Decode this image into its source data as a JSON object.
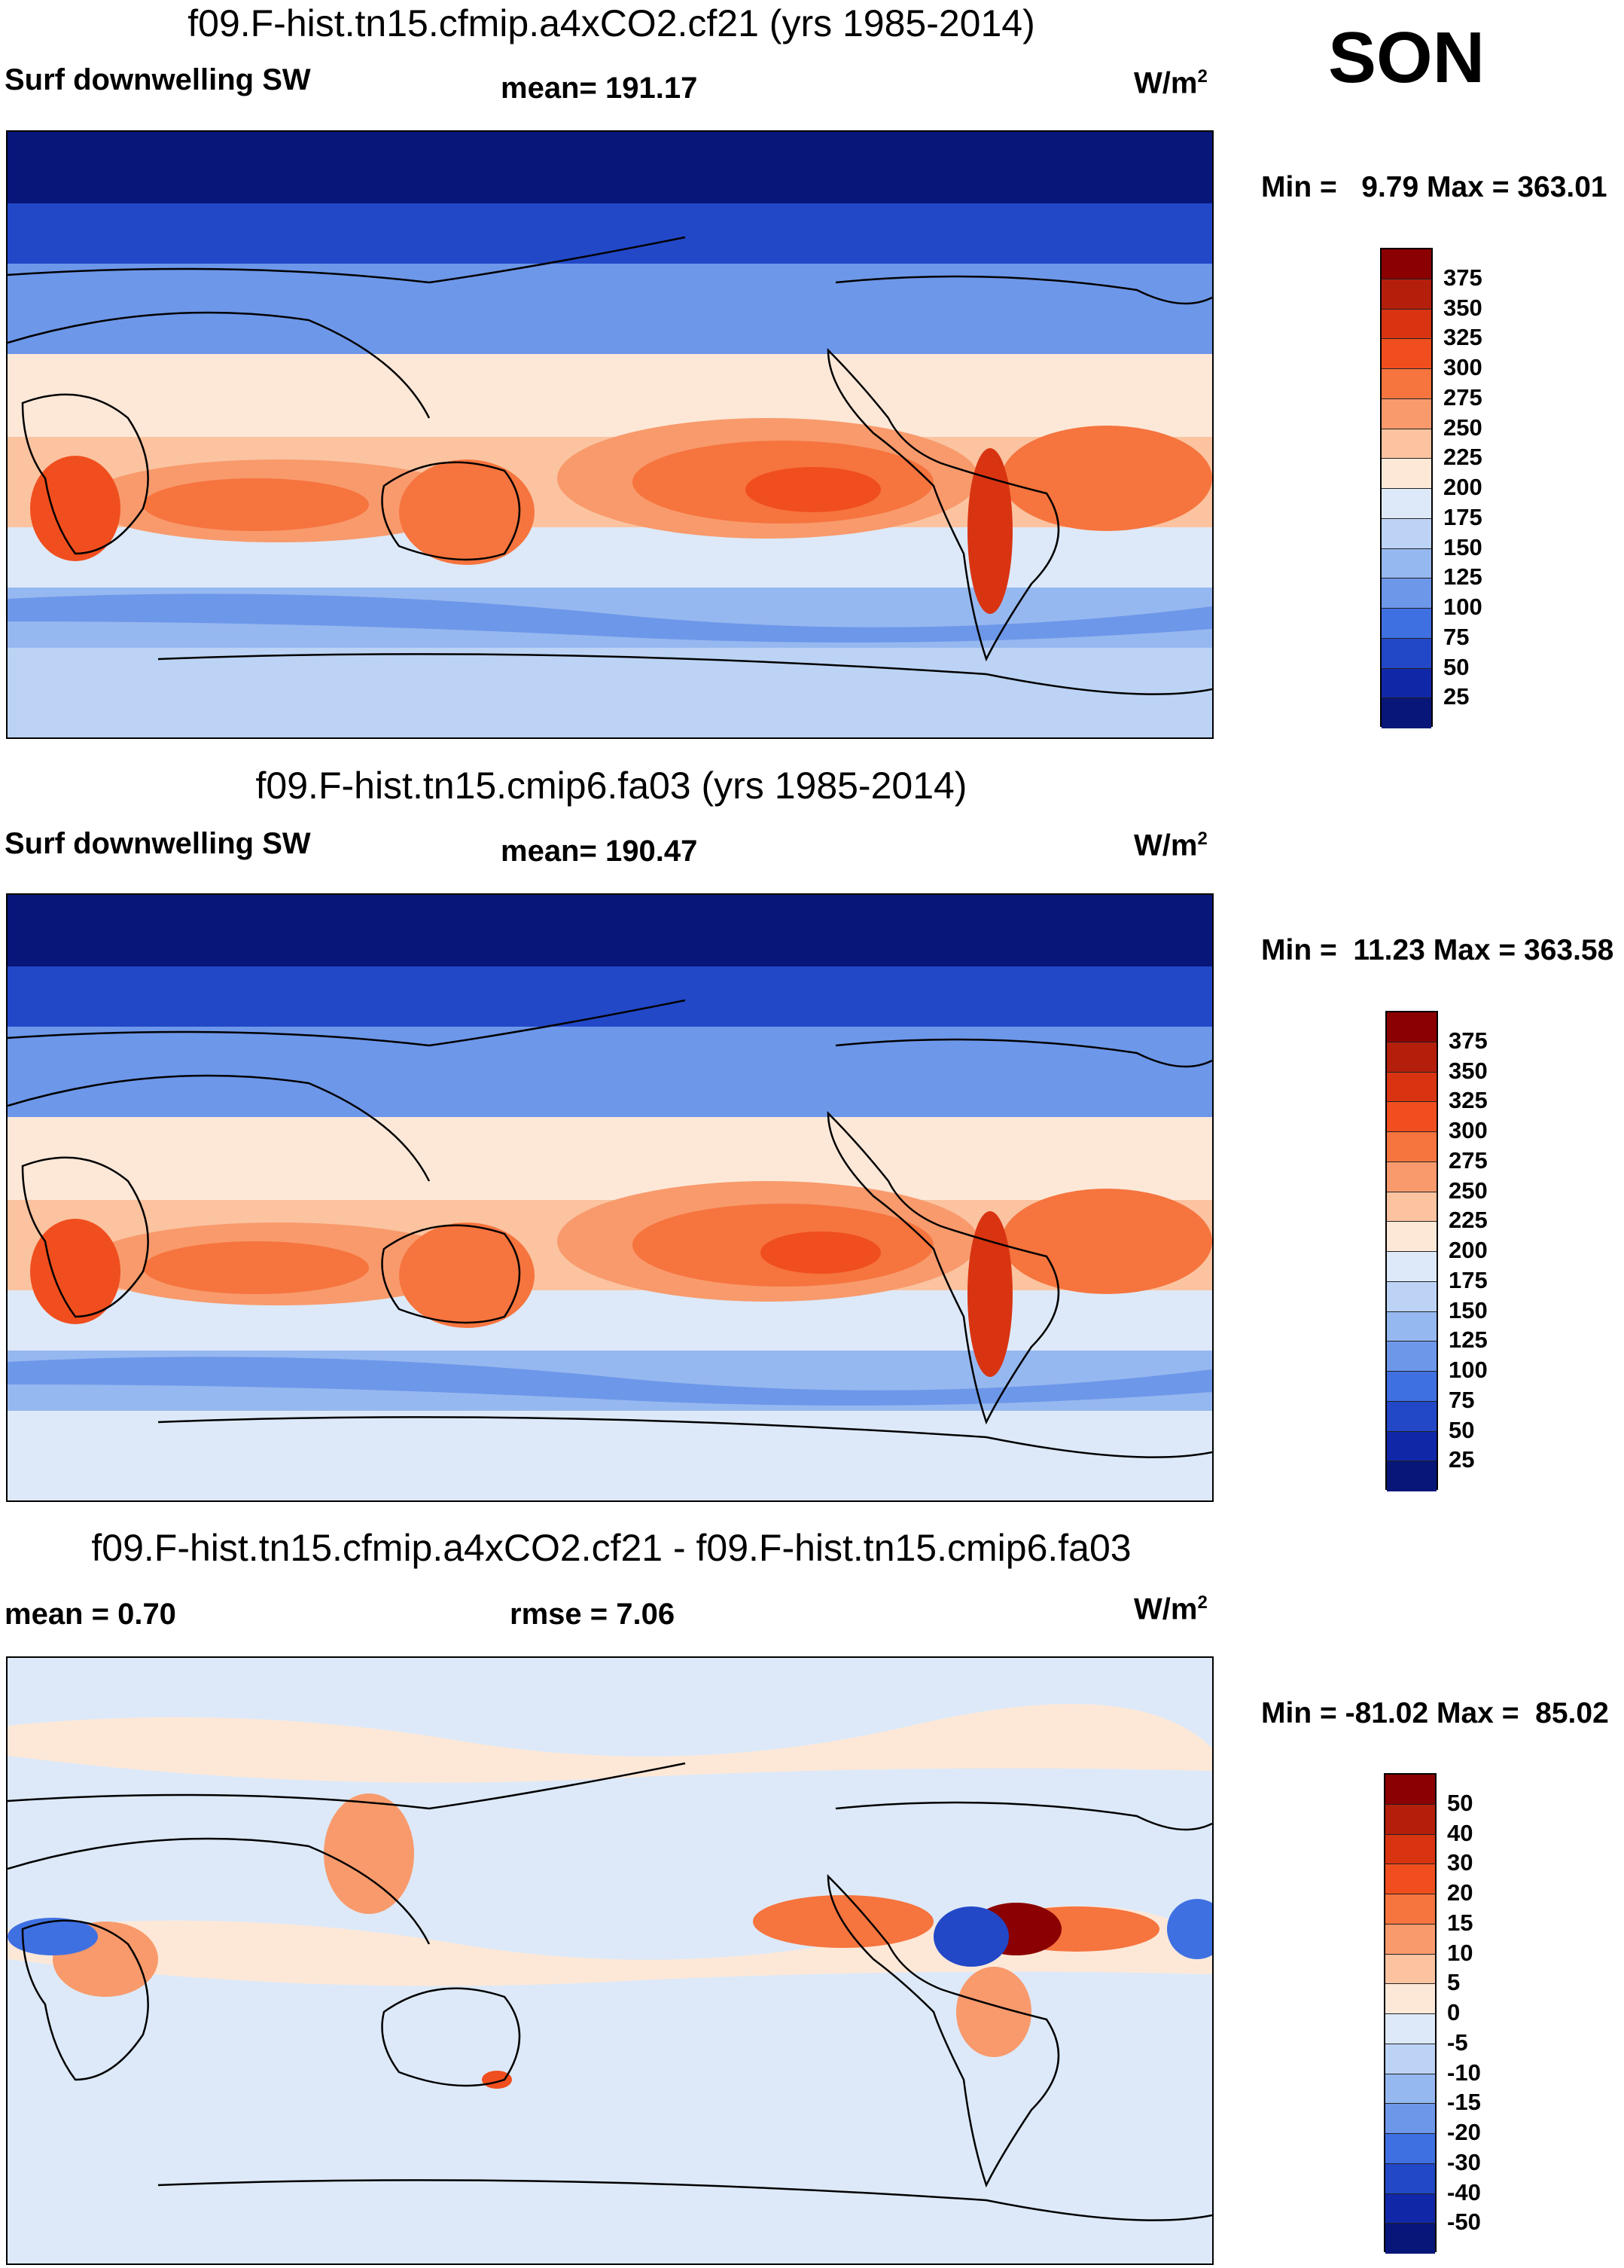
{
  "season": "SON",
  "panels": [
    {
      "title": "f09.F-hist.tn15.cfmip.a4xCO2.cf21 (yrs 1985-2014)",
      "variable": "Surf downwelling SW",
      "stat": "mean= 191.17",
      "units_base": "W/m",
      "units_exp": "2",
      "minmax": "Min =   9.79 Max = 363.01",
      "colorbar": {
        "labels": [
          "375",
          "350",
          "325",
          "300",
          "275",
          "250",
          "225",
          "200",
          "175",
          "150",
          "125",
          "100",
          "75",
          "50",
          "25"
        ],
        "colors": [
          "#8b0000",
          "#b41f0c",
          "#d93412",
          "#f04e1e",
          "#f6743e",
          "#f89a6c",
          "#fbc3a0",
          "#fde8d8",
          "#dde9f8",
          "#bcd3f5",
          "#96b8f0",
          "#6d97e9",
          "#3f70e2",
          "#2248c8",
          "#1028a8",
          "#071678"
        ]
      },
      "map_palette": {
        "ocean_polar": "#0a1e8c",
        "ocean_midlat": "#3f70e2",
        "sub_polar": "#6d97e9",
        "temperate": "#bcd3f5",
        "subtropic": "#fbc3a0",
        "trade": "#f89a6c",
        "core": "#f6743e",
        "hot": "#d93412"
      }
    },
    {
      "title": "f09.F-hist.tn15.cmip6.fa03 (yrs 1985-2014)",
      "variable": "Surf downwelling SW",
      "stat": "mean= 190.47",
      "units_base": "W/m",
      "units_exp": "2",
      "minmax": "Min =  11.23 Max = 363.58",
      "colorbar": {
        "labels": [
          "375",
          "350",
          "325",
          "300",
          "275",
          "250",
          "225",
          "200",
          "175",
          "150",
          "125",
          "100",
          "75",
          "50",
          "25"
        ],
        "colors": [
          "#8b0000",
          "#b41f0c",
          "#d93412",
          "#f04e1e",
          "#f6743e",
          "#f89a6c",
          "#fbc3a0",
          "#fde8d8",
          "#dde9f8",
          "#bcd3f5",
          "#96b8f0",
          "#6d97e9",
          "#3f70e2",
          "#2248c8",
          "#1028a8",
          "#071678"
        ]
      }
    },
    {
      "title": "f09.F-hist.tn15.cfmip.a4xCO2.cf21 - f09.F-hist.tn15.cmip6.fa03",
      "stat_left": "mean =   0.70",
      "stat": "rmse =   7.06",
      "units_base": "W/m",
      "units_exp": "2",
      "minmax": "Min = -81.02 Max =  85.02",
      "colorbar": {
        "labels": [
          "50",
          "40",
          "30",
          "20",
          "15",
          "10",
          "5",
          "0",
          "-5",
          "-10",
          "-15",
          "-20",
          "-30",
          "-40",
          "-50"
        ],
        "colors": [
          "#8b0000",
          "#b41f0c",
          "#d93412",
          "#f04e1e",
          "#f6743e",
          "#f89a6c",
          "#fbc3a0",
          "#fde8d8",
          "#dde9f8",
          "#bcd3f5",
          "#96b8f0",
          "#6d97e9",
          "#3f70e2",
          "#2248c8",
          "#1028a8",
          "#071678"
        ]
      }
    }
  ]
}
